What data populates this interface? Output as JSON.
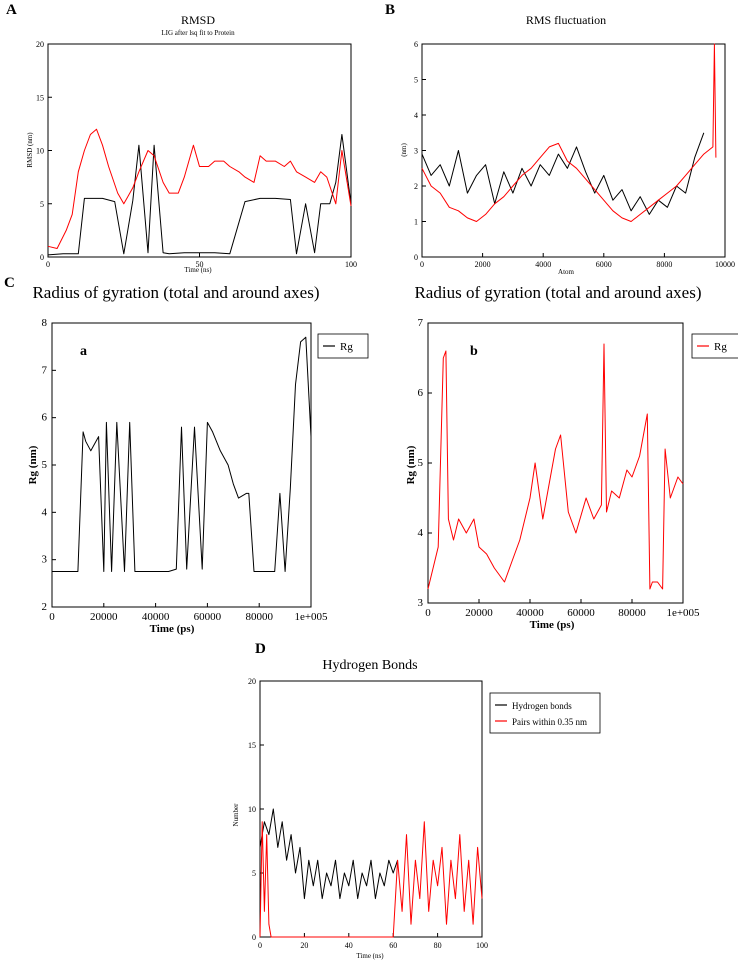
{
  "chart_data": [
    {
      "panel": "A",
      "type": "line",
      "title": "RMSD",
      "subtitle": "LIG after lsq fit to Protein",
      "xlabel": "Time (ns)",
      "ylabel": "RMSD (nm)",
      "xlim": [
        0,
        100
      ],
      "ylim": [
        0,
        20
      ],
      "xticks": [
        0,
        50,
        100
      ],
      "yticks": [
        0,
        5,
        10,
        15,
        20
      ],
      "series": [
        {
          "color": "#000000",
          "x": [
            0,
            5,
            10,
            12,
            15,
            18,
            22,
            25,
            28,
            30,
            33,
            35,
            38,
            40,
            45,
            50,
            55,
            60,
            65,
            70,
            72,
            75,
            80,
            82,
            85,
            88,
            90,
            93,
            95,
            97,
            100
          ],
          "values": [
            0.2,
            0.3,
            0.3,
            5.5,
            5.5,
            5.5,
            5.2,
            0.3,
            5.3,
            10.5,
            0.4,
            10.5,
            0.4,
            0.3,
            0.4,
            0.4,
            0.4,
            0.3,
            5.2,
            5.5,
            5.5,
            5.5,
            5.4,
            0.3,
            5.0,
            0.4,
            5.0,
            5.0,
            7.0,
            11.5,
            5.0
          ]
        },
        {
          "color": "#ff0000",
          "x": [
            0,
            3,
            6,
            8,
            10,
            12,
            14,
            16,
            18,
            20,
            23,
            25,
            28,
            30,
            33,
            35,
            38,
            40,
            43,
            45,
            48,
            50,
            53,
            55,
            58,
            60,
            63,
            65,
            68,
            70,
            72,
            75,
            78,
            80,
            82,
            85,
            88,
            90,
            92,
            95,
            97,
            100
          ],
          "values": [
            1.0,
            0.8,
            2.5,
            4.0,
            8.0,
            10.0,
            11.5,
            12.0,
            10.5,
            8.5,
            6.0,
            5.0,
            6.5,
            8.0,
            10.0,
            9.5,
            7.0,
            6.0,
            6.0,
            7.5,
            10.5,
            8.5,
            8.5,
            9.0,
            9.0,
            8.5,
            8.0,
            7.5,
            7.0,
            9.5,
            9.0,
            9.0,
            8.5,
            9.0,
            8.0,
            7.5,
            7.0,
            8.0,
            7.5,
            5.0,
            10.0,
            4.8
          ]
        }
      ]
    },
    {
      "panel": "B",
      "type": "line",
      "title": "RMS fluctuation",
      "xlabel": "Atom",
      "ylabel": "(nm)",
      "xlim": [
        0,
        10000
      ],
      "ylim": [
        0,
        6
      ],
      "xticks": [
        0,
        2000,
        4000,
        6000,
        8000,
        10000
      ],
      "yticks": [
        0,
        1,
        2,
        3,
        4,
        5,
        6
      ],
      "series": [
        {
          "color": "#000000",
          "x": [
            0,
            300,
            600,
            900,
            1200,
            1500,
            1800,
            2100,
            2400,
            2700,
            3000,
            3300,
            3600,
            3900,
            4200,
            4500,
            4800,
            5100,
            5400,
            5700,
            6000,
            6300,
            6600,
            6900,
            7200,
            7500,
            7800,
            8100,
            8400,
            8700,
            9000,
            9300
          ],
          "values": [
            2.9,
            2.3,
            2.6,
            2.0,
            3.0,
            1.8,
            2.3,
            2.6,
            1.5,
            2.4,
            1.8,
            2.5,
            2.0,
            2.6,
            2.3,
            2.9,
            2.5,
            3.1,
            2.4,
            1.8,
            2.3,
            1.6,
            1.9,
            1.3,
            1.7,
            1.2,
            1.6,
            1.4,
            2.0,
            1.8,
            2.8,
            3.5
          ]
        },
        {
          "color": "#ff0000",
          "x": [
            0,
            300,
            600,
            900,
            1200,
            1500,
            1800,
            2100,
            2400,
            2700,
            3000,
            3300,
            3600,
            3900,
            4200,
            4500,
            4800,
            5100,
            5400,
            5700,
            6000,
            6300,
            6600,
            6900,
            7200,
            7500,
            7800,
            8100,
            8400,
            8700,
            9000,
            9300,
            9600,
            9650,
            9700
          ],
          "values": [
            2.5,
            2.0,
            1.8,
            1.4,
            1.3,
            1.1,
            1.0,
            1.2,
            1.5,
            1.7,
            2.0,
            2.3,
            2.5,
            2.8,
            3.1,
            3.2,
            2.7,
            2.5,
            2.2,
            1.9,
            1.6,
            1.3,
            1.1,
            1.0,
            1.2,
            1.4,
            1.6,
            1.8,
            2.0,
            2.3,
            2.6,
            2.9,
            3.1,
            6.0,
            2.8
          ]
        }
      ]
    },
    {
      "panel": "C-a",
      "type": "line",
      "title": "Radius of gyration (total and around axes)",
      "annotation": "a",
      "xlabel": "Time (ps)",
      "ylabel": "Rg (nm)",
      "xlim": [
        0,
        100000
      ],
      "ylim": [
        2,
        8
      ],
      "xticks": [
        "0",
        "20000",
        "40000",
        "60000",
        "80000",
        "1e+005"
      ],
      "yticks": [
        2,
        3,
        4,
        5,
        6,
        7,
        8
      ],
      "legend": "top-right",
      "series": [
        {
          "name": "Rg",
          "color": "#000000",
          "x": [
            0,
            5000,
            10000,
            12000,
            13000,
            15000,
            18000,
            20000,
            21000,
            23000,
            25000,
            28000,
            30000,
            32000,
            35000,
            38000,
            40000,
            45000,
            48000,
            50000,
            52000,
            55000,
            58000,
            60000,
            62000,
            65000,
            68000,
            70000,
            72000,
            75000,
            76000,
            78000,
            80000,
            83000,
            86000,
            88000,
            90000,
            92000,
            94000,
            96000,
            98000,
            100000
          ],
          "values": [
            2.75,
            2.75,
            2.75,
            5.7,
            5.5,
            5.3,
            5.6,
            2.75,
            5.9,
            2.75,
            5.9,
            2.75,
            5.9,
            2.75,
            2.75,
            2.75,
            2.75,
            2.75,
            2.8,
            5.8,
            2.8,
            5.8,
            2.8,
            5.9,
            5.7,
            5.3,
            5.0,
            4.6,
            4.3,
            4.4,
            4.4,
            2.75,
            2.75,
            2.75,
            2.75,
            4.4,
            2.75,
            4.5,
            6.7,
            7.6,
            7.7,
            5.6
          ]
        }
      ]
    },
    {
      "panel": "C-b",
      "type": "line",
      "title": "Radius of gyration (total and around axes)",
      "annotation": "b",
      "xlabel": "Time (ps)",
      "ylabel": "Rg (nm)",
      "xlim": [
        0,
        100000
      ],
      "ylim": [
        3,
        7
      ],
      "xticks": [
        "0",
        "20000",
        "40000",
        "60000",
        "80000",
        "1e+005"
      ],
      "yticks": [
        3,
        4,
        5,
        6,
        7
      ],
      "legend": "top-right",
      "series": [
        {
          "name": "Rg",
          "color": "#ff0000",
          "x": [
            0,
            2000,
            4000,
            6000,
            7000,
            8000,
            10000,
            12000,
            15000,
            18000,
            20000,
            23000,
            26000,
            30000,
            33000,
            36000,
            40000,
            42000,
            45000,
            48000,
            50000,
            52000,
            55000,
            58000,
            62000,
            65000,
            68000,
            69000,
            70000,
            72000,
            75000,
            78000,
            80000,
            83000,
            86000,
            87000,
            88000,
            90000,
            92000,
            93000,
            95000,
            98000,
            100000
          ],
          "values": [
            3.2,
            3.5,
            3.8,
            6.5,
            6.6,
            4.2,
            3.9,
            4.2,
            4.0,
            4.2,
            3.8,
            3.7,
            3.5,
            3.3,
            3.6,
            3.9,
            4.5,
            5.0,
            4.2,
            4.8,
            5.2,
            5.4,
            4.3,
            4.0,
            4.5,
            4.2,
            4.4,
            6.7,
            4.3,
            4.6,
            4.5,
            4.9,
            4.8,
            5.1,
            5.7,
            3.2,
            3.3,
            3.3,
            3.2,
            5.2,
            4.5,
            4.8,
            4.7
          ]
        }
      ]
    },
    {
      "panel": "D",
      "type": "line",
      "title": "Hydrogen Bonds",
      "xlabel": "Time (ns)",
      "ylabel": "Number",
      "xlim": [
        0,
        100
      ],
      "ylim": [
        0,
        20
      ],
      "xticks": [
        0,
        20,
        40,
        60,
        80,
        100
      ],
      "yticks": [
        0,
        5,
        10,
        15,
        20
      ],
      "legend": "top-right",
      "series": [
        {
          "name": "Hydrogen bonds",
          "color": "#000000",
          "x": [
            0,
            2,
            4,
            6,
            8,
            10,
            12,
            14,
            16,
            18,
            20,
            22,
            24,
            26,
            28,
            30,
            32,
            34,
            36,
            38,
            40,
            42,
            44,
            46,
            48,
            50,
            52,
            54,
            56,
            58,
            60,
            62
          ],
          "values": [
            7,
            9,
            8,
            10,
            7,
            9,
            6,
            8,
            5,
            7,
            3,
            6,
            4,
            6,
            3,
            5,
            4,
            6,
            3,
            5,
            4,
            6,
            3,
            5,
            4,
            6,
            3,
            5,
            4,
            6,
            5,
            6
          ]
        },
        {
          "name": "Pairs within 0.35 nm",
          "color": "#ff0000",
          "x": [
            0,
            1,
            2,
            3,
            4,
            5,
            60,
            62,
            64,
            66,
            68,
            70,
            72,
            74,
            76,
            78,
            80,
            82,
            84,
            86,
            88,
            90,
            92,
            94,
            96,
            98,
            100
          ],
          "values": [
            0,
            9,
            2,
            8,
            1,
            0,
            0,
            6,
            2,
            8,
            1,
            6,
            3,
            9,
            2,
            6,
            4,
            7,
            1,
            6,
            3,
            8,
            2,
            6,
            1,
            7,
            3
          ]
        }
      ]
    }
  ]
}
